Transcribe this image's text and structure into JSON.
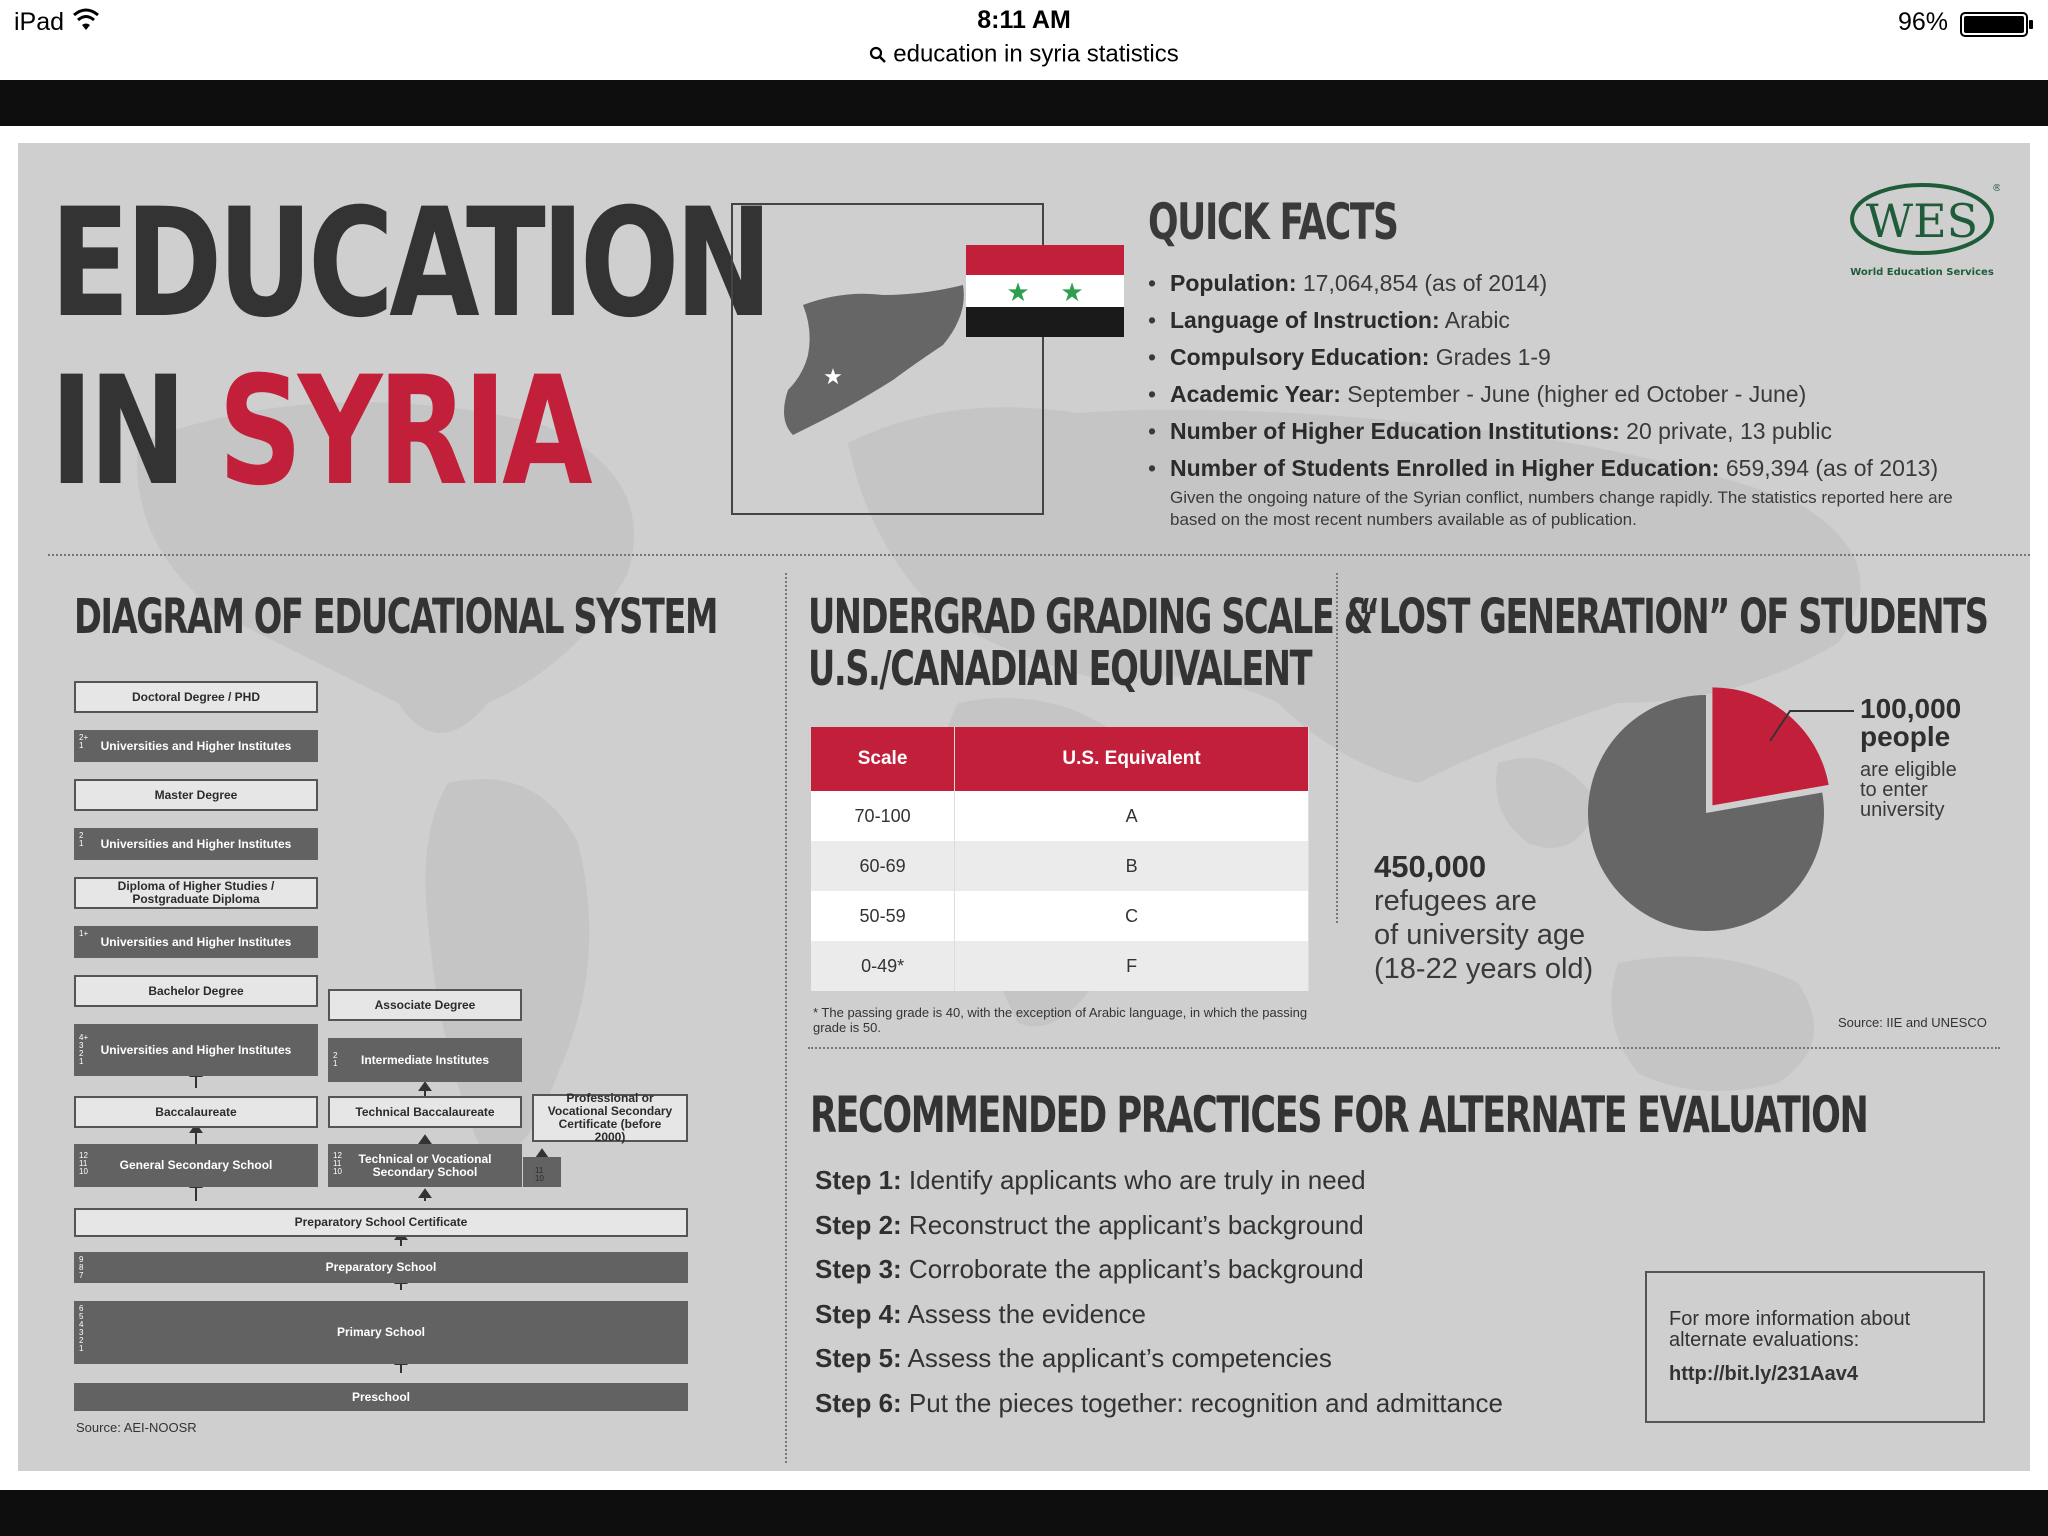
{
  "status_bar": {
    "device": "iPad",
    "time": "8:11 AM",
    "battery": "96%"
  },
  "browser": {
    "url_text": "education in syria statistics"
  },
  "title": {
    "line1": "EDUCATION",
    "line2_prefix": "IN",
    "line2_highlight": "SYRIA"
  },
  "quick_facts": {
    "heading": "QUICK FACTS",
    "items": [
      {
        "label": "Population:",
        "value": " 17,064,854 (as of 2014)"
      },
      {
        "label": "Language of Instruction:",
        "value": " Arabic"
      },
      {
        "label": "Compulsory Education:",
        "value": " Grades 1-9"
      },
      {
        "label": "Academic Year:",
        "value": " September - June (higher ed October - June)"
      },
      {
        "label": "Number of Higher Education Institutions:",
        "value": "  20 private, 13 public"
      },
      {
        "label": "Number of Students Enrolled in Higher Education:",
        "value": " 659,394 (as of 2013)"
      }
    ],
    "note": "Given the ongoing nature of the Syrian conflict, numbers change rapidly. The statistics reported here are based on the most recent numbers available as of publication."
  },
  "wes_logo": {
    "abbr": "WES",
    "registered": "®",
    "full": "World Education Services"
  },
  "diagram": {
    "heading": "DIAGRAM OF EDUCATIONAL SYSTEM",
    "boxes": {
      "doctoral": "Doctoral Degree / PHD",
      "univ1": "Universities and Higher Institutes",
      "master": "Master Degree",
      "univ2": "Universities and Higher Institutes",
      "diploma": "Diploma of Higher Studies / Postgraduate Diploma",
      "univ3": "Universities and Higher Institutes",
      "bachelor": "Bachelor Degree",
      "univ4": "Universities and Higher Institutes",
      "baccalaureate": "Baccalaureate",
      "general_secondary": "General Secondary School",
      "associate": "Associate Degree",
      "intermediate": "Intermediate Institutes",
      "technical_bacc": "Technical Baccalaureate",
      "tech_voc_school": "Technical or Vocational Secondary School",
      "prof_cert": "Professional or Vocational Secondary Certificate (before 2000)",
      "prep_cert": "Preparatory School Certificate",
      "prep_school": "Preparatory School",
      "primary": "Primary School",
      "preschool": "Preschool"
    },
    "year_labels": {
      "univ1": "2+\n1",
      "univ2": "2\n1",
      "univ3": "1+",
      "univ4": "4+\n3\n2\n1",
      "general_secondary": "12\n11\n10",
      "intermediate": "2\n1",
      "tech_voc_school": "12\n11\n10",
      "prof_small": "11\n10",
      "prep_school": "9\n8\n7",
      "primary": "6\n5\n4\n3\n2\n1"
    },
    "source": "Source: AEI-NOOSR"
  },
  "grading": {
    "heading_line1": "UNDERGRAD GRADING SCALE &",
    "heading_line2": "U.S./CANADIAN EQUIVALENT",
    "columns": [
      "Scale",
      "U.S. Equivalent"
    ],
    "rows": [
      [
        "70-100",
        "A"
      ],
      [
        "60-69",
        "B"
      ],
      [
        "50-59",
        "C"
      ],
      [
        "0-49*",
        "F"
      ]
    ],
    "footnote": "* The passing grade is 40, with the exception of Arabic language, in which the passing grade is 50."
  },
  "lost_generation": {
    "heading": "“LOST GENERATION” OF STUDENTS",
    "eligible_number": "100,000",
    "eligible_word": "people",
    "eligible_text": [
      "are eligible",
      "to enter",
      "university"
    ],
    "refugees_number": "450,000",
    "refugees_text": [
      "refugees are",
      "of university age",
      "(18-22 years old)"
    ],
    "source": "Source: IIE and UNESCO"
  },
  "chart_data": {
    "type": "pie",
    "categories": [
      "eligible to enter university",
      "refugees of university age"
    ],
    "values": [
      100000,
      350000
    ],
    "colors": [
      "#c2203a",
      "#666666"
    ]
  },
  "practices": {
    "heading": "RECOMMENDED PRACTICES FOR ALTERNATE EVALUATION",
    "steps": [
      {
        "label": "Step 1:",
        "text": " Identify applicants who are truly in need"
      },
      {
        "label": "Step 2:",
        "text": " Reconstruct the applicant’s background"
      },
      {
        "label": "Step 3:",
        "text": " Corroborate the applicant’s background"
      },
      {
        "label": "Step 4:",
        "text": " Assess the evidence"
      },
      {
        "label": "Step 5:",
        "text": " Assess the applicant’s competencies"
      },
      {
        "label": "Step 6:",
        "text": " Put the pieces together: recognition and admittance"
      }
    ],
    "more_info": "For more information about alternate evaluations:",
    "link": "http://bit.ly/231Aav4"
  },
  "colors": {
    "red": "#c2203a",
    "dark": "#333333",
    "panel": "#d0cfcf",
    "box_dark": "#626262",
    "flag_green": "#2e9e4f"
  }
}
